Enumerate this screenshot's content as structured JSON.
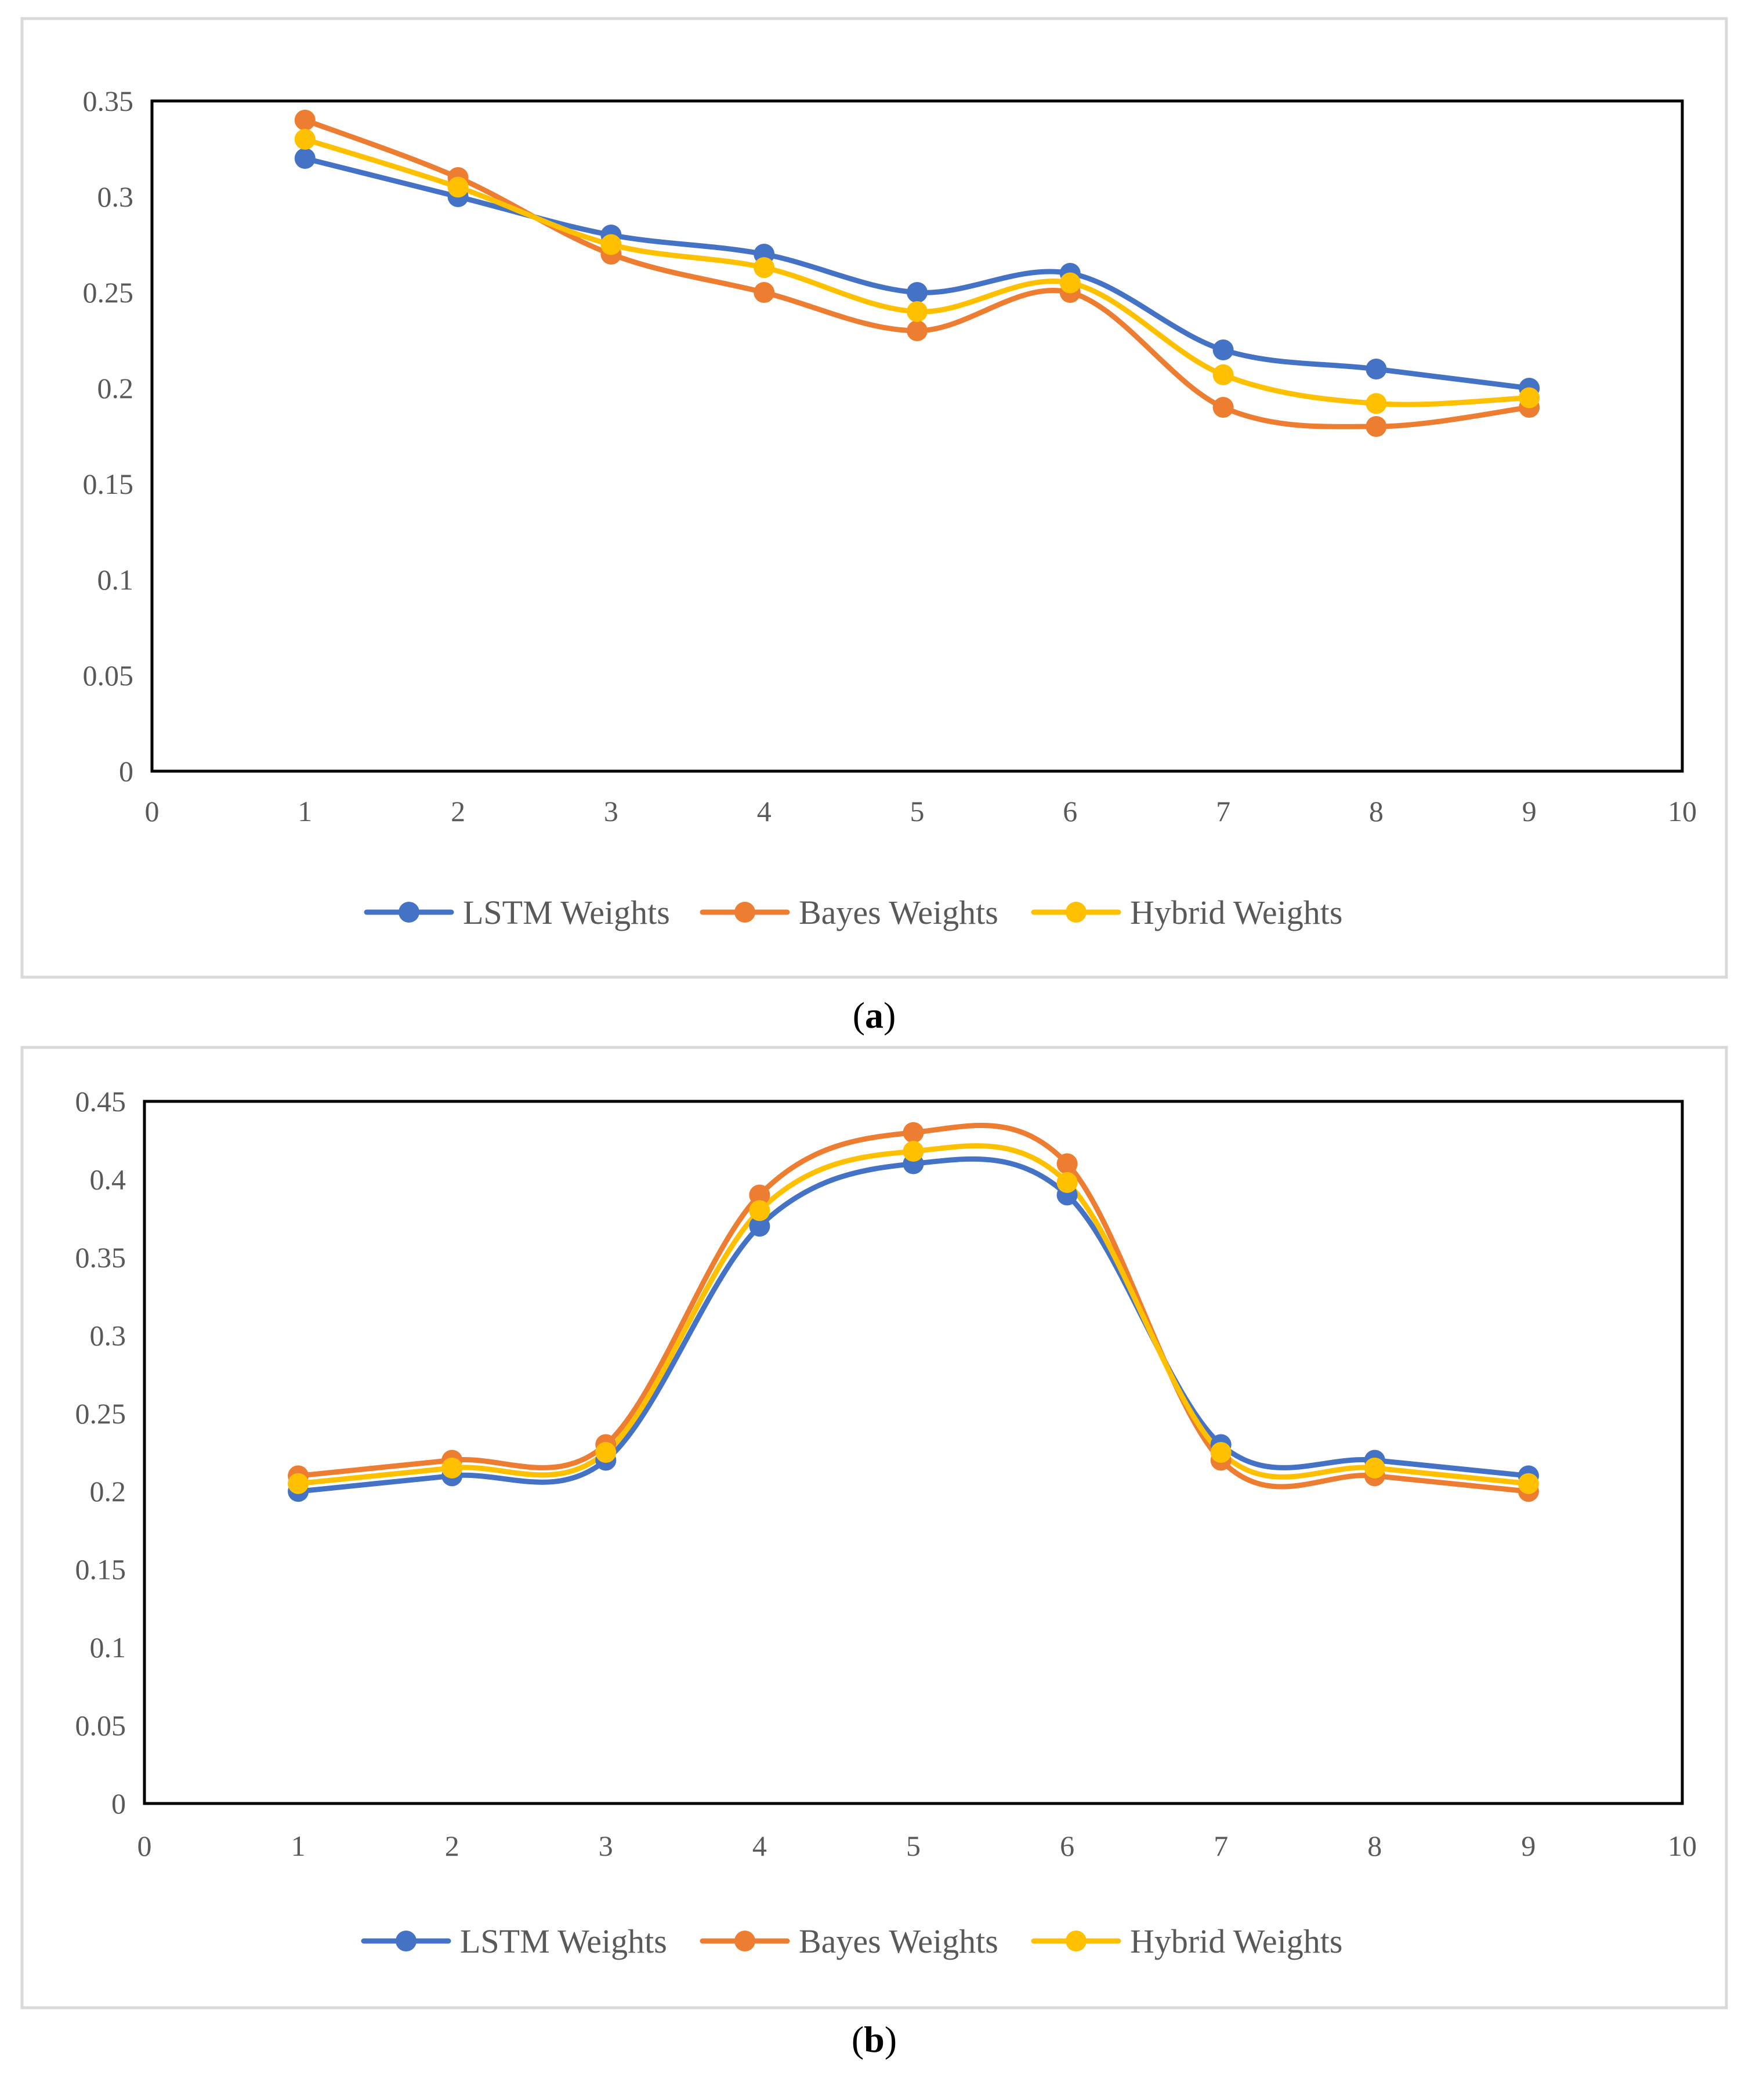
{
  "colors": {
    "lstm": "#4472C4",
    "bayes": "#ED7D31",
    "hybrid": "#FFC000"
  },
  "chart_data": [
    {
      "type": "line",
      "panel": "a",
      "caption_open": "(",
      "caption_letter": "a",
      "caption_close": ")",
      "x": [
        1,
        2,
        3,
        4,
        5,
        6,
        7,
        8,
        9
      ],
      "xlim": [
        0,
        10
      ],
      "xticks": [
        "0",
        "1",
        "2",
        "3",
        "4",
        "5",
        "6",
        "7",
        "8",
        "9",
        "10"
      ],
      "ylim": [
        0,
        0.35
      ],
      "yticks": [
        "0",
        "0.05",
        "0.1",
        "0.15",
        "0.2",
        "0.25",
        "0.3",
        "0.35"
      ],
      "grid": false,
      "legend": "bottom",
      "series": [
        {
          "name": "LSTM Weights",
          "key": "lstm",
          "values": [
            0.32,
            0.3,
            0.28,
            0.27,
            0.25,
            0.26,
            0.22,
            0.21,
            0.2
          ]
        },
        {
          "name": "Bayes Weights",
          "key": "bayes",
          "values": [
            0.34,
            0.31,
            0.27,
            0.25,
            0.23,
            0.25,
            0.19,
            0.18,
            0.19
          ]
        },
        {
          "name": "Hybrid Weights",
          "key": "hybrid",
          "values": [
            0.33,
            0.305,
            0.275,
            0.263,
            0.24,
            0.255,
            0.207,
            0.192,
            0.195
          ]
        }
      ]
    },
    {
      "type": "line",
      "panel": "b",
      "caption_open": "(",
      "caption_letter": "b",
      "caption_close": ")",
      "x": [
        1,
        2,
        3,
        4,
        5,
        6,
        7,
        8,
        9
      ],
      "xlim": [
        0,
        10
      ],
      "xticks": [
        "0",
        "1",
        "2",
        "3",
        "4",
        "5",
        "6",
        "7",
        "8",
        "9",
        "10"
      ],
      "ylim": [
        0,
        0.45
      ],
      "yticks": [
        "0",
        "0.05",
        "0.1",
        "0.15",
        "0.2",
        "0.25",
        "0.3",
        "0.35",
        "0.4",
        "0.45"
      ],
      "grid": false,
      "legend": "bottom",
      "series": [
        {
          "name": "LSTM Weights",
          "key": "lstm",
          "values": [
            0.2,
            0.21,
            0.22,
            0.37,
            0.41,
            0.39,
            0.23,
            0.22,
            0.21
          ]
        },
        {
          "name": "Bayes Weights",
          "key": "bayes",
          "values": [
            0.21,
            0.22,
            0.23,
            0.39,
            0.43,
            0.41,
            0.22,
            0.21,
            0.2
          ]
        },
        {
          "name": "Hybrid Weights",
          "key": "hybrid",
          "values": [
            0.205,
            0.215,
            0.225,
            0.38,
            0.418,
            0.398,
            0.225,
            0.215,
            0.205
          ]
        }
      ]
    }
  ]
}
